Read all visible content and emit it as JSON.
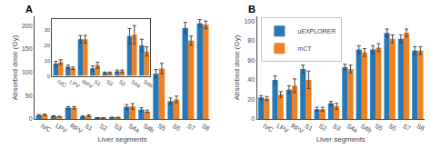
{
  "chart_data": [
    {
      "type": "bar",
      "title": "A",
      "categories": [
        "IVC",
        "LPV",
        "RPV",
        "S1",
        "S2",
        "S3",
        "S4a",
        "S4b",
        "S5",
        "S6",
        "S7",
        "S8"
      ],
      "series": [
        {
          "color": "#2878b5",
          "values": [
            8,
            6,
            24,
            5,
            2,
            3,
            26,
            20,
            97,
            38,
            195,
            205
          ],
          "errors": [
            1.5,
            1.0,
            2.5,
            1.5,
            0.5,
            0.8,
            5,
            4,
            9,
            7,
            12,
            8
          ]
        },
        {
          "color": "#f08020",
          "values": [
            9,
            5,
            24,
            7,
            2,
            3,
            27,
            16,
            108,
            42,
            168,
            202
          ],
          "errors": [
            1.5,
            0.8,
            2.5,
            2.0,
            0.5,
            0.8,
            6,
            3,
            11,
            7,
            10,
            8
          ]
        }
      ],
      "xlabel": "Liver segments",
      "ylabel": "Absorbed dose (Gy)",
      "ylim": [
        0,
        220
      ],
      "yticks": [
        0,
        50,
        100,
        150,
        200
      ],
      "grid": false
    },
    {
      "type": "bar",
      "categories": [
        "IVC",
        "LPV",
        "RPV",
        "S1",
        "S2",
        "S3",
        "S4a",
        "S4b"
      ],
      "series": [
        {
          "color": "#2878b5",
          "values": [
            8,
            6,
            24,
            5,
            2,
            3,
            26,
            20
          ],
          "errors": [
            1.5,
            1.0,
            2.5,
            1.5,
            0.5,
            0.8,
            5,
            4
          ]
        },
        {
          "color": "#f08020",
          "values": [
            9,
            5,
            24,
            7,
            2,
            3,
            27,
            16
          ],
          "errors": [
            1.5,
            0.8,
            2.5,
            2.0,
            0.5,
            0.8,
            6,
            3
          ]
        }
      ],
      "ylim": [
        0,
        37
      ],
      "yticks": [
        0,
        10,
        20,
        30
      ],
      "grid": false
    },
    {
      "type": "bar",
      "title": "B",
      "categories": [
        "IVC",
        "LPV",
        "RPV",
        "S1",
        "S2",
        "S3",
        "S4a",
        "S4b",
        "S5",
        "S6",
        "S7",
        "S8"
      ],
      "series": [
        {
          "name": "uEXPLORER",
          "color": "#2878b5",
          "values": [
            22,
            40,
            30,
            51,
            10,
            16,
            53,
            71,
            71,
            88,
            82,
            70
          ],
          "errors": [
            2,
            4,
            4,
            4,
            2,
            2,
            3,
            4,
            4,
            4,
            4,
            4
          ]
        },
        {
          "name": "mCT",
          "color": "#f08020",
          "values": [
            21,
            25,
            34,
            40,
            10,
            13,
            51,
            68,
            73,
            82,
            88,
            70
          ],
          "errors": [
            2,
            3,
            7,
            9,
            2,
            3,
            4,
            4,
            4,
            4,
            4,
            4
          ]
        }
      ],
      "xlabel": "Liver segments",
      "ylabel": "Absorbed dose (Gy)",
      "ylim": [
        0,
        105
      ],
      "yticks": [
        0,
        20,
        40,
        60,
        80,
        100
      ],
      "grid": false,
      "legend": "upper left"
    }
  ]
}
